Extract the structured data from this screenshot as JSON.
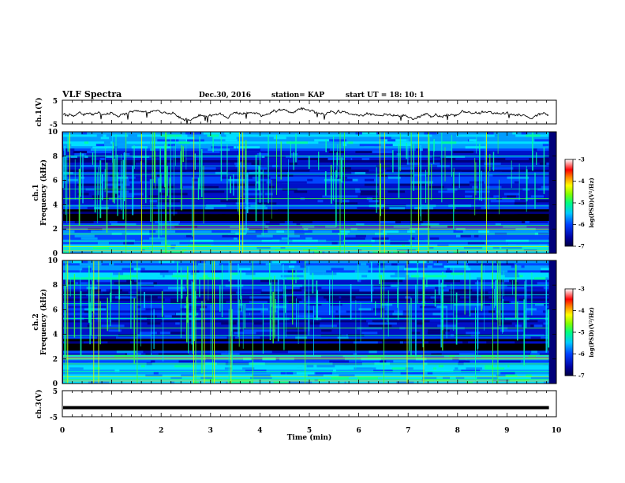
{
  "header": {
    "title": "VLF Spectra",
    "date": "Dec.30, 2016",
    "station": "station= KAP",
    "start": "start  UT =   18: 10: 1"
  },
  "chart_data": [
    {
      "type": "line",
      "panel": "ch1-waveform",
      "ylabel": "ch.1(V)",
      "ylim": [
        -5,
        5
      ],
      "ytick_labels": [
        "5",
        "-5"
      ],
      "xlim": [
        0,
        10
      ],
      "x_end": 9.85,
      "approx_range_V": [
        -2.5,
        0.5
      ],
      "color": "#000000"
    },
    {
      "type": "heatmap",
      "panel": "ch1-spectrogram",
      "ylabel": "ch.1",
      "ylabel2": "Frequency  (kHz)",
      "ylim": [
        0,
        10
      ],
      "ytick_labels": [
        "0",
        "2",
        "4",
        "6",
        "8",
        "10"
      ],
      "colorbar": {
        "label": "log(PSD)(V²/Hz)",
        "range": [
          -7,
          -3
        ],
        "tick_labels": [
          "-3",
          "-4",
          "-5",
          "-6",
          "-7"
        ]
      }
    },
    {
      "type": "heatmap",
      "panel": "ch2-spectrogram",
      "ylabel": "ch.2",
      "ylabel2": "Frequency  (kHz)",
      "ylim": [
        0,
        10
      ],
      "ytick_labels": [
        "0",
        "2",
        "4",
        "6",
        "8",
        "10"
      ],
      "colorbar": {
        "label": "log(PSD)(V²/Hz)",
        "range": [
          -7,
          -3
        ],
        "tick_labels": [
          "-3",
          "-4",
          "-5",
          "-6",
          "-7"
        ]
      }
    },
    {
      "type": "line",
      "panel": "ch3-waveform",
      "ylabel": "ch.3(V)",
      "ylim": [
        -5,
        5
      ],
      "ytick_labels": [
        "5",
        "-5"
      ],
      "xlim": [
        0,
        10
      ],
      "x_end": 9.85,
      "constant_value_V": -1.5,
      "color": "#000000"
    }
  ],
  "x_axis": {
    "label": "Time  (min)",
    "range": [
      0,
      10
    ],
    "tick_labels": [
      "0",
      "1",
      "2",
      "3",
      "4",
      "5",
      "6",
      "7",
      "8",
      "9",
      "10"
    ]
  },
  "colormap": [
    "#000000",
    "#00007a",
    "#0010c8",
    "#0046ff",
    "#009cff",
    "#00e0ff",
    "#00ffa8",
    "#3cff3c",
    "#c8ff00",
    "#ffc800",
    "#ff3c00",
    "#e8e8e8"
  ]
}
